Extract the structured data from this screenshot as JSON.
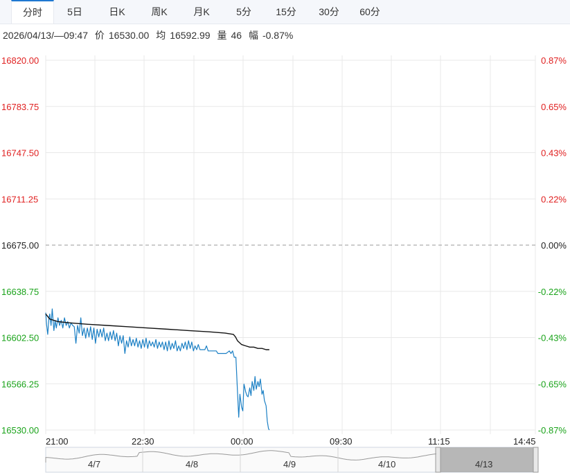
{
  "tabs": [
    {
      "label": "分时",
      "active": true
    },
    {
      "label": "5日",
      "active": false
    },
    {
      "label": "日K",
      "active": false
    },
    {
      "label": "周K",
      "active": false
    },
    {
      "label": "月K",
      "active": false
    },
    {
      "label": "5分",
      "active": false
    },
    {
      "label": "15分",
      "active": false
    },
    {
      "label": "30分",
      "active": false
    },
    {
      "label": "60分",
      "active": false
    }
  ],
  "info": {
    "datetime": "2026/04/13/—09:47",
    "price_label": "价",
    "price": "16530.00",
    "avg_label": "均",
    "avg": "16592.99",
    "vol_label": "量",
    "vol": "46",
    "chg_label": "幅",
    "chg": "-0.87%"
  },
  "colors": {
    "up": "#e02020",
    "down": "#1aa31a",
    "neutral": "#222222",
    "price_line": "#1a7fc4",
    "avg_line": "#111111"
  },
  "chart_data": {
    "type": "line",
    "base_price": 16675.0,
    "ylim": [
      16530.0,
      16820.0
    ],
    "y_ticks": [
      "16820.00",
      "16783.75",
      "16747.50",
      "16711.25",
      "16675.00",
      "16638.75",
      "16602.50",
      "16566.25",
      "16530.00"
    ],
    "pct_ticks": [
      "0.87%",
      "0.65%",
      "0.43%",
      "0.22%",
      "0.00%",
      "-0.22%",
      "-0.43%",
      "-0.65%",
      "-0.87%"
    ],
    "x_ticks": [
      "21:00",
      "22:30",
      "00:00",
      "09:30",
      "11:15",
      "14:45"
    ],
    "series": [
      {
        "type": "price",
        "points": [
          [
            0,
            16622
          ],
          [
            0.2,
            16613
          ],
          [
            0.5,
            16605
          ],
          [
            0.8,
            16618
          ],
          [
            1,
            16621
          ],
          [
            1.3,
            16612
          ],
          [
            1.6,
            16625
          ],
          [
            2,
            16608
          ],
          [
            2.3,
            16616
          ],
          [
            2.6,
            16610
          ],
          [
            3,
            16618
          ],
          [
            3.4,
            16612
          ],
          [
            3.8,
            16616
          ],
          [
            4.2,
            16610
          ],
          [
            4.6,
            16618
          ],
          [
            5,
            16612
          ],
          [
            5.4,
            16615
          ],
          [
            5.8,
            16610
          ],
          [
            6.2,
            16614
          ],
          [
            6.6,
            16612
          ],
          [
            7,
            16611
          ],
          [
            7.4,
            16598
          ],
          [
            7.8,
            16612
          ],
          [
            8.2,
            16606
          ],
          [
            8.6,
            16618
          ],
          [
            9,
            16604
          ],
          [
            9.4,
            16610
          ],
          [
            9.8,
            16602
          ],
          [
            10.2,
            16610
          ],
          [
            10.6,
            16603
          ],
          [
            11,
            16611
          ],
          [
            11.4,
            16601
          ],
          [
            11.8,
            16610
          ],
          [
            12.2,
            16598
          ],
          [
            12.6,
            16609
          ],
          [
            13,
            16603
          ],
          [
            13.4,
            16609
          ],
          [
            13.8,
            16603
          ],
          [
            14.2,
            16610
          ],
          [
            14.6,
            16600
          ],
          [
            15,
            16606
          ],
          [
            15.4,
            16600
          ],
          [
            15.8,
            16607
          ],
          [
            16.2,
            16601
          ],
          [
            16.6,
            16608
          ],
          [
            17,
            16600
          ],
          [
            17.4,
            16606
          ],
          [
            17.8,
            16596
          ],
          [
            18.2,
            16604
          ],
          [
            18.6,
            16598
          ],
          [
            19,
            16604
          ],
          [
            19.4,
            16590
          ],
          [
            19.8,
            16600
          ],
          [
            20.2,
            16595
          ],
          [
            20.6,
            16603
          ],
          [
            21,
            16596
          ],
          [
            21.4,
            16601
          ],
          [
            21.8,
            16596
          ],
          [
            22.2,
            16602
          ],
          [
            22.6,
            16595
          ],
          [
            23,
            16600
          ],
          [
            23.4,
            16594
          ],
          [
            23.8,
            16601
          ],
          [
            24.2,
            16595
          ],
          [
            24.6,
            16602
          ],
          [
            25,
            16594
          ],
          [
            25.4,
            16600
          ],
          [
            25.8,
            16596
          ],
          [
            26.2,
            16599
          ],
          [
            26.6,
            16595
          ],
          [
            27,
            16601
          ],
          [
            27.4,
            16594
          ],
          [
            27.8,
            16599
          ],
          [
            28.2,
            16595
          ],
          [
            28.6,
            16599
          ],
          [
            29,
            16593
          ],
          [
            29.4,
            16599
          ],
          [
            29.8,
            16592
          ],
          [
            30.2,
            16600
          ],
          [
            30.6,
            16593
          ],
          [
            31,
            16598
          ],
          [
            31.4,
            16594
          ],
          [
            31.8,
            16600
          ],
          [
            32.2,
            16592
          ],
          [
            32.6,
            16596
          ],
          [
            33,
            16592
          ],
          [
            33.4,
            16598
          ],
          [
            33.8,
            16594
          ],
          [
            34.2,
            16599
          ],
          [
            34.6,
            16593
          ],
          [
            35,
            16600
          ],
          [
            35.4,
            16594
          ],
          [
            35.8,
            16599
          ],
          [
            36.2,
            16592
          ],
          [
            36.6,
            16596
          ],
          [
            37,
            16593
          ],
          [
            37.4,
            16597
          ],
          [
            37.8,
            16593
          ],
          [
            38.2,
            16593
          ],
          [
            38.6,
            16593
          ],
          [
            39,
            16593
          ],
          [
            39.4,
            16596
          ],
          [
            39.8,
            16592
          ],
          [
            40.2,
            16592
          ],
          [
            40.6,
            16592
          ],
          [
            41,
            16592
          ],
          [
            41.4,
            16592
          ],
          [
            41.8,
            16592
          ],
          [
            42.2,
            16590
          ],
          [
            42.6,
            16590
          ],
          [
            43,
            16590
          ],
          [
            43.4,
            16590
          ],
          [
            43.8,
            16590
          ],
          [
            44.2,
            16590
          ],
          [
            44.6,
            16591
          ],
          [
            45,
            16592
          ],
          [
            45.4,
            16590
          ],
          [
            45.8,
            16592
          ],
          [
            46.2,
            16587
          ],
          [
            46.6,
            16587
          ],
          [
            47,
            16560
          ],
          [
            47.3,
            16540
          ],
          [
            47.6,
            16558
          ],
          [
            48,
            16548
          ],
          [
            48.3,
            16545
          ],
          [
            48.6,
            16566
          ],
          [
            49,
            16560
          ],
          [
            49.3,
            16557
          ],
          [
            49.6,
            16556
          ],
          [
            50,
            16563
          ],
          [
            50.3,
            16557
          ],
          [
            50.6,
            16568
          ],
          [
            51,
            16561
          ],
          [
            51.3,
            16572
          ],
          [
            51.6,
            16562
          ],
          [
            52,
            16568
          ],
          [
            52.3,
            16564
          ],
          [
            52.6,
            16570
          ],
          [
            53,
            16558
          ],
          [
            53.3,
            16561
          ],
          [
            53.6,
            16553
          ],
          [
            54,
            16549
          ],
          [
            54.3,
            16537
          ],
          [
            54.6,
            16531
          ],
          [
            54.8,
            16530
          ]
        ],
        "max_x": 120
      },
      {
        "type": "average",
        "points": [
          [
            0,
            16621
          ],
          [
            1,
            16617
          ],
          [
            3,
            16615
          ],
          [
            6,
            16614
          ],
          [
            10,
            16613
          ],
          [
            15,
            16612
          ],
          [
            20,
            16611
          ],
          [
            25,
            16610
          ],
          [
            30,
            16609
          ],
          [
            35,
            16608
          ],
          [
            40,
            16607
          ],
          [
            44,
            16606
          ],
          [
            46,
            16605
          ],
          [
            46.5,
            16603
          ],
          [
            47,
            16600
          ],
          [
            48,
            16597
          ],
          [
            49,
            16596
          ],
          [
            50,
            16595
          ],
          [
            51,
            16595
          ],
          [
            52,
            16594
          ],
          [
            53,
            16594
          ],
          [
            54,
            16593
          ],
          [
            54.8,
            16593
          ]
        ],
        "max_x": 120
      }
    ],
    "navigator": {
      "labels": [
        "4/7",
        "4/8",
        "4/9",
        "4/10",
        "4/13"
      ],
      "selected": "4/13"
    }
  }
}
